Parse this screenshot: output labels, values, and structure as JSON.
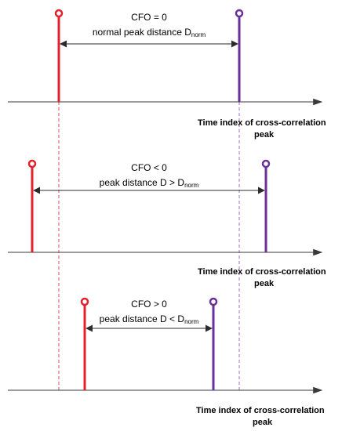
{
  "colors": {
    "red_peak": "#e3202b",
    "purple_peak": "#6b2f9a",
    "axis": "#3a3a3a",
    "arrow": "#2b2b2b",
    "guide_red": "#e3202b",
    "guide_purple": "#8a4fc0"
  },
  "panels": [
    {
      "line1": "CFO = 0",
      "line2_main": "normal peak distance D",
      "line2_sub": "norm",
      "axis_label_line1": "Time index of cross-correlation",
      "axis_label_line2": "peak"
    },
    {
      "line1": "CFO < 0",
      "line2_main": "peak distance D > D",
      "line2_sub": "norm",
      "axis_label_line1": "Time index of cross-correlation",
      "axis_label_line2": "peak"
    },
    {
      "line1": "CFO > 0",
      "line2_main": "peak distance D < D",
      "line2_sub": "norm",
      "axis_label_line1": "Time index of cross-correlation",
      "axis_label_line2": "peak"
    }
  ]
}
